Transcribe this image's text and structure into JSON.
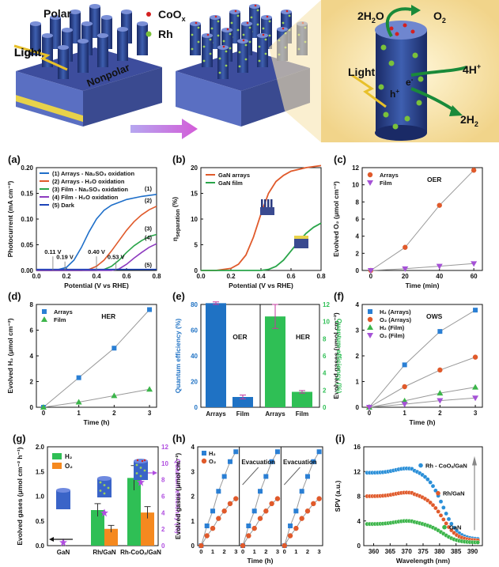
{
  "schematic": {
    "polar": "Polar",
    "light": "Light",
    "nonpolar": "Nonpolar",
    "legend_coox": "CoO",
    "legend_coox_sub": "x",
    "legend_rh": "Rh",
    "water": "2H",
    "water_sub": "2",
    "water_tail": "O",
    "oxygen": "O",
    "oxygen_sub": "2",
    "light2": "Light",
    "protons": "4H",
    "protons_sup": "+",
    "hydrogen": "2H",
    "hydrogen_sub": "2",
    "hole": "h",
    "hole_sup": "+",
    "electron": "e",
    "electron_sup": "-",
    "colors": {
      "coox": "#d42020",
      "rh": "#7ac13a",
      "arrow": "#1a8a3a",
      "bg_panel": "#f8e2a8"
    }
  },
  "chart_data": [
    {
      "panel": "(a)",
      "type": "line",
      "xlabel": "Potential (V vs RHE)",
      "ylabel": "Photocurrent (mA cm⁻²)",
      "xlim": [
        0,
        0.8
      ],
      "ylim": [
        0,
        0.2
      ],
      "xticks": [
        "0.0",
        "0.2",
        "0.4",
        "0.6",
        "0.8"
      ],
      "yticks": [
        "0.00",
        "0.05",
        "0.10",
        "0.15",
        "0.20"
      ],
      "series": [
        {
          "name": "(1) Arrays - Na₂SO₃ oxidation",
          "tag": "(1)",
          "color": "#1f6fc9",
          "x": [
            0,
            0.1,
            0.15,
            0.2,
            0.25,
            0.3,
            0.35,
            0.4,
            0.45,
            0.5,
            0.6,
            0.7,
            0.8
          ],
          "y": [
            0,
            0,
            0.002,
            0.006,
            0.02,
            0.045,
            0.075,
            0.1,
            0.117,
            0.127,
            0.138,
            0.144,
            0.148
          ]
        },
        {
          "name": "(2) Arrays - H₂O oxidation",
          "tag": "(2)",
          "color": "#e05a2b",
          "x": [
            0,
            0.3,
            0.35,
            0.4,
            0.45,
            0.5,
            0.55,
            0.6,
            0.65,
            0.7,
            0.75,
            0.8
          ],
          "y": [
            0,
            0,
            0.002,
            0.008,
            0.02,
            0.038,
            0.058,
            0.078,
            0.095,
            0.108,
            0.118,
            0.125
          ]
        },
        {
          "name": "(3) Film - Na₂SO₃ oxidation",
          "tag": "(3)",
          "color": "#2aa54a",
          "x": [
            0,
            0.4,
            0.45,
            0.5,
            0.55,
            0.6,
            0.65,
            0.7,
            0.75,
            0.8
          ],
          "y": [
            0,
            0,
            0.002,
            0.008,
            0.02,
            0.035,
            0.048,
            0.058,
            0.066,
            0.07
          ]
        },
        {
          "name": "(4) Film - H₂O oxidation",
          "tag": "(4)",
          "color": "#8d3bbf",
          "x": [
            0,
            0.5,
            0.55,
            0.6,
            0.65,
            0.7,
            0.75,
            0.8
          ],
          "y": [
            0,
            0,
            0.003,
            0.012,
            0.024,
            0.035,
            0.045,
            0.052
          ]
        },
        {
          "name": "(5) Dark",
          "tag": "(5)",
          "color": "#1d44b8",
          "x": [
            0,
            0.8
          ],
          "y": [
            0.002,
            0.002
          ]
        }
      ],
      "annotations": [
        "0.11 V",
        "0.19 V",
        "0.40 V",
        "0.53 V"
      ],
      "annotation_x": [
        0.11,
        0.19,
        0.4,
        0.53
      ]
    },
    {
      "panel": "(b)",
      "type": "line",
      "xlabel": "Potential (V vs RHE)",
      "ylabel": "η",
      "ylabel_sub": "separation",
      "ylabel_tail": " (%)",
      "xlim": [
        0,
        0.8
      ],
      "ylim": [
        0,
        20
      ],
      "xticks": [
        "0.0",
        "0.2",
        "0.4",
        "0.6",
        "0.8"
      ],
      "yticks": [
        "0",
        "5",
        "10",
        "15",
        "20"
      ],
      "series": [
        {
          "name": "GaN arrays",
          "color": "#e05a2b",
          "x": [
            0,
            0.1,
            0.2,
            0.25,
            0.3,
            0.35,
            0.4,
            0.45,
            0.5,
            0.55,
            0.6,
            0.7,
            0.8
          ],
          "y": [
            0,
            0,
            0.4,
            1.2,
            3,
            6.5,
            11,
            15,
            17.3,
            18.5,
            19.3,
            20,
            20.4
          ]
        },
        {
          "name": "GaN film",
          "color": "#2aa54a",
          "x": [
            0,
            0.4,
            0.45,
            0.5,
            0.55,
            0.6,
            0.65,
            0.7,
            0.75,
            0.8
          ],
          "y": [
            0,
            0,
            0.2,
            0.8,
            2,
            3.8,
            5.6,
            7.2,
            8.4,
            9.2
          ]
        }
      ]
    },
    {
      "panel": "(c)",
      "type": "line",
      "title": "OER",
      "xlabel": "Time (min)",
      "ylabel": "Evolved O₂ (μmol cm⁻²)",
      "xlim": [
        -5,
        65
      ],
      "ylim": [
        0,
        12
      ],
      "xticks": [
        "0",
        "20",
        "40",
        "60"
      ],
      "xtick_values": [
        0,
        20,
        40,
        60
      ],
      "yticks": [
        "0",
        "2",
        "4",
        "6",
        "8",
        "10",
        "12"
      ],
      "series": [
        {
          "name": "Arrays",
          "color": "#e05a2b",
          "marker": "circle",
          "x": [
            0,
            20,
            40,
            60
          ],
          "y": [
            0,
            2.7,
            7.6,
            11.7
          ]
        },
        {
          "name": "Film",
          "color": "#a552d6",
          "marker": "triangle-down",
          "x": [
            0,
            20,
            40,
            60
          ],
          "y": [
            0,
            0.2,
            0.5,
            0.8
          ]
        }
      ]
    },
    {
      "panel": "(d)",
      "type": "line",
      "title": "HER",
      "xlabel": "Time (h)",
      "ylabel": "Evolved H₂ (μmol cm⁻²)",
      "xlim": [
        -0.2,
        3.2
      ],
      "ylim": [
        0,
        8
      ],
      "xticks": [
        "0",
        "1",
        "2",
        "3"
      ],
      "xtick_values": [
        0,
        1,
        2,
        3
      ],
      "yticks": [
        "0",
        "2",
        "4",
        "6",
        "8"
      ],
      "series": [
        {
          "name": "Arrays",
          "color": "#2a7fd4",
          "marker": "square",
          "x": [
            0,
            1,
            2,
            3
          ],
          "y": [
            0,
            2.3,
            4.6,
            7.6
          ]
        },
        {
          "name": "Film",
          "color": "#3cb54a",
          "marker": "triangle",
          "x": [
            0,
            1,
            2,
            3
          ],
          "y": [
            0,
            0.4,
            0.9,
            1.4
          ]
        }
      ]
    },
    {
      "panel": "(e)",
      "type": "bar",
      "ylabel": "Quantum efficiency (%)",
      "ylabel_right": "Quantum efficiency (%)",
      "ylim": [
        0,
        80
      ],
      "ylim_right": [
        0,
        12
      ],
      "yticks": [
        "0",
        "20",
        "40",
        "60",
        "80"
      ],
      "yticks_right": [
        "0",
        "2",
        "4",
        "6",
        "8",
        "10",
        "12"
      ],
      "groups": [
        "OER",
        "HER"
      ],
      "categories": [
        "Arrays",
        "Film",
        "Arrays",
        "Film"
      ],
      "values": [
        81,
        8,
        10.6,
        1.8
      ],
      "errors": [
        1,
        1.5,
        1.4,
        0.15
      ],
      "axis": [
        "left",
        "left",
        "right",
        "right"
      ],
      "colors": [
        "#1f72c4",
        "#1f72c4",
        "#2fbf55",
        "#2fbf55"
      ]
    },
    {
      "panel": "(f)",
      "type": "line",
      "title": "OWS",
      "xlabel": "Time (h)",
      "ylabel": "Evolved gases (μmol cm⁻²)",
      "xlim": [
        -0.2,
        3.2
      ],
      "ylim": [
        0,
        4
      ],
      "xticks": [
        "0",
        "1",
        "2",
        "3"
      ],
      "xtick_values": [
        0,
        1,
        2,
        3
      ],
      "yticks": [
        "0",
        "1",
        "2",
        "3",
        "4"
      ],
      "series": [
        {
          "name": "H₂ (Arrays)",
          "color": "#2a7fd4",
          "marker": "square",
          "x": [
            0,
            1,
            2,
            3
          ],
          "y": [
            0,
            1.65,
            2.95,
            3.78
          ]
        },
        {
          "name": "O₂ (Arrays)",
          "color": "#e05a2b",
          "marker": "circle",
          "x": [
            0,
            1,
            2,
            3
          ],
          "y": [
            0,
            0.8,
            1.45,
            1.95
          ]
        },
        {
          "name": "H₂ (Film)",
          "color": "#3cb54a",
          "marker": "triangle",
          "x": [
            0,
            1,
            2,
            3
          ],
          "y": [
            0,
            0.25,
            0.55,
            0.78
          ]
        },
        {
          "name": "O₂ (Film)",
          "color": "#a552d6",
          "marker": "triangle-down",
          "x": [
            0,
            1,
            2,
            3
          ],
          "y": [
            0,
            0.12,
            0.26,
            0.36
          ]
        }
      ]
    },
    {
      "panel": "(g)",
      "type": "bar",
      "ylabel": "Evolved gases (μmol cm⁻² h⁻¹)",
      "ylabel_right": "Quantum efficiency (%)",
      "ylim": [
        0,
        2.0
      ],
      "ylim_right": [
        0,
        12
      ],
      "yticks": [
        "0.0",
        "0.5",
        "1.0",
        "1.5",
        "2.0"
      ],
      "yticks_right": [
        "0",
        "2",
        "4",
        "6",
        "8",
        "10",
        "12"
      ],
      "categories": [
        "GaN",
        "Rh/GaN",
        "Rh-CoOₓ/GaN"
      ],
      "series": [
        {
          "name": "H₂",
          "color": "#2fbf55",
          "values": [
            0,
            0.72,
            1.37
          ],
          "errors": [
            0,
            0.13,
            0.25
          ]
        },
        {
          "name": "O₂",
          "color": "#f5891f",
          "values": [
            0,
            0.34,
            0.67
          ],
          "errors": [
            0,
            0.07,
            0.12
          ]
        }
      ],
      "qe": {
        "values": [
          0.4,
          4.0,
          7.7
        ],
        "color": "#b04ee0"
      }
    },
    {
      "panel": "(h)",
      "type": "line",
      "xlabel": "Time (h)",
      "ylabel": "Evolved gases (μmol cm⁻²)",
      "xlim": [
        -0.3,
        3.3
      ],
      "ylim": [
        0,
        4
      ],
      "xticks": [
        "0",
        "1",
        "2",
        "3"
      ],
      "xtick_values": [
        0,
        1,
        2,
        3
      ],
      "yticks": [
        "0",
        "1",
        "2",
        "3",
        "4"
      ],
      "annotations": [
        "Evacuation",
        "Evacuation"
      ],
      "cycles": 3,
      "series": [
        {
          "name": "H₂",
          "color": "#2a7fd4",
          "marker": "square",
          "x": [
            0,
            0.5,
            1,
            1.5,
            2,
            2.5,
            3
          ],
          "y": [
            0,
            0.8,
            1.4,
            2.2,
            2.8,
            3.4,
            3.8
          ]
        },
        {
          "name": "O₂",
          "color": "#e05a2b",
          "marker": "circle",
          "x": [
            0,
            0.5,
            1,
            1.5,
            2,
            2.5,
            3
          ],
          "y": [
            0,
            0.4,
            0.7,
            1.1,
            1.4,
            1.7,
            1.9
          ]
        }
      ]
    },
    {
      "panel": "(i)",
      "type": "scatter",
      "xlabel": "Wavelength (nm)",
      "ylabel": "SPV (a.u.)",
      "xlim": [
        357,
        393
      ],
      "ylim": [
        0,
        16
      ],
      "xticks": [
        "360",
        "365",
        "370",
        "375",
        "380",
        "385",
        "390"
      ],
      "xtick_values": [
        360,
        365,
        370,
        375,
        380,
        385,
        390
      ],
      "yticks": [
        "0",
        "4",
        "8",
        "12",
        "16"
      ],
      "series": [
        {
          "name": "Rh - CoOₓ/GaN",
          "color": "#2a8fd8",
          "peak": 12.5,
          "base": 11.8,
          "tail": 1.0
        },
        {
          "name": "Rh/GaN",
          "color": "#e05a2b",
          "peak": 8.6,
          "base": 8.0,
          "tail": 0.8
        },
        {
          "name": "GaN",
          "color": "#3cb54a",
          "peak": 4.0,
          "base": 3.5,
          "tail": 0.5
        }
      ]
    }
  ]
}
